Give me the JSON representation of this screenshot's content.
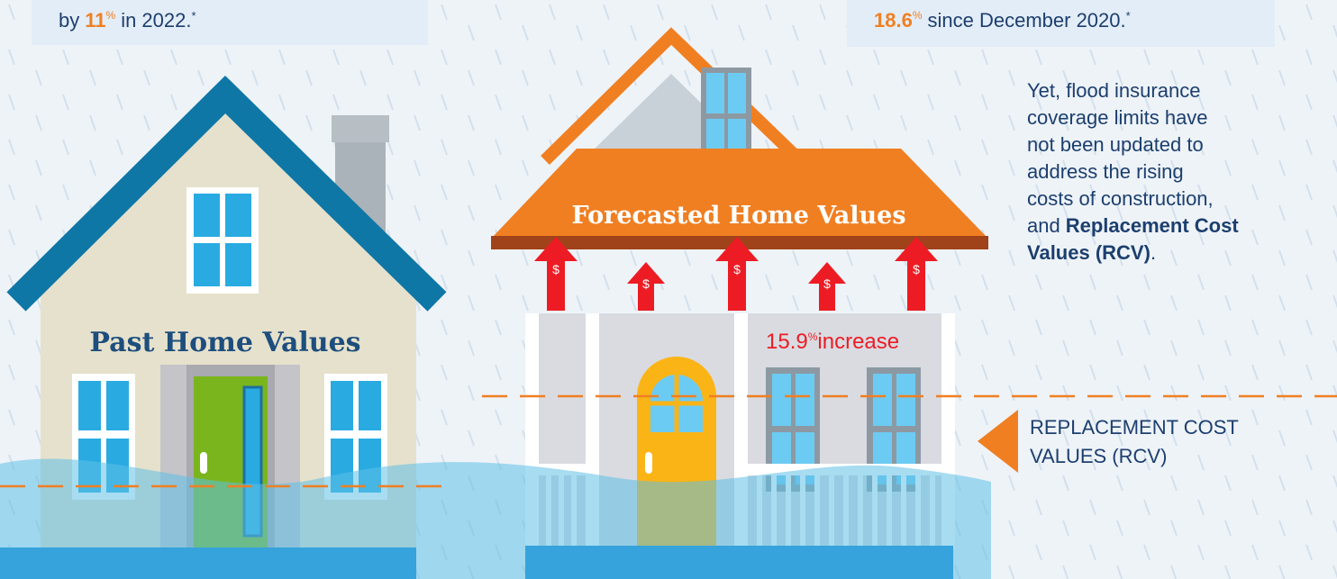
{
  "top_left": {
    "prefix": "by",
    "figure": "11",
    "unit": "%",
    "suffix": "in 2022.",
    "note": "*"
  },
  "top_right": {
    "figure": "18.6",
    "unit": "%",
    "suffix": "since December 2020.",
    "note": "*"
  },
  "past_house": {
    "label": "Past Home Values"
  },
  "forecast_house": {
    "label": "Forecasted Home Values",
    "arrows": [
      "$",
      "$",
      "$",
      "$",
      "$"
    ],
    "increase": {
      "figure": "15.9",
      "unit": "%",
      "label": "increase"
    }
  },
  "note": {
    "lines": [
      "Yet, flood insurance",
      "coverage limits have",
      "not been updated to",
      "address the rising",
      "costs of construction,",
      "and"
    ],
    "emphasis": [
      "Replacement Cost",
      "Values (RCV)"
    ],
    "end": "."
  },
  "rcv_marker": {
    "lines": [
      "REPLACEMENT COST",
      "VALUES (RCV)"
    ]
  }
}
